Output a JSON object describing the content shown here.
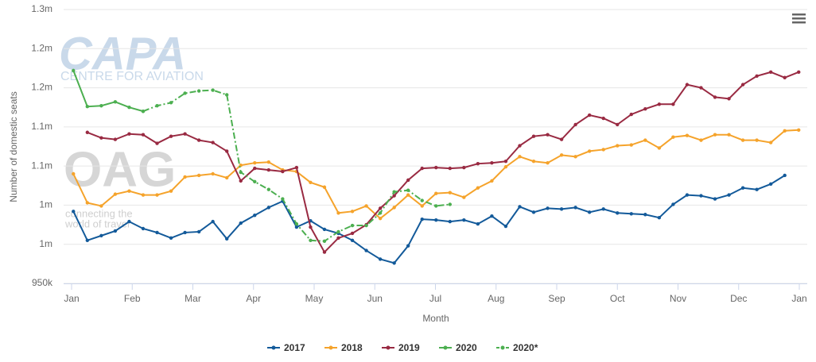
{
  "chart_data": {
    "type": "line",
    "y_label": "Number of domestic seats",
    "x_label": "Month",
    "watermarks": [
      "CAPA",
      "CENTRE FOR AVIATION",
      "OAG",
      "connecting the",
      "world of travel"
    ],
    "xlim": [
      0,
      12
    ],
    "xticks": [
      {
        "value": 0,
        "label": "Jan"
      },
      {
        "value": 1,
        "label": "Feb"
      },
      {
        "value": 2,
        "label": "Mar"
      },
      {
        "value": 3,
        "label": "Apr"
      },
      {
        "value": 4,
        "label": "May"
      },
      {
        "value": 5,
        "label": "Jun"
      },
      {
        "value": 6,
        "label": "Jul"
      },
      {
        "value": 7,
        "label": "Aug"
      },
      {
        "value": 8,
        "label": "Sep"
      },
      {
        "value": 9,
        "label": "Oct"
      },
      {
        "value": 10,
        "label": "Nov"
      },
      {
        "value": 11,
        "label": "Dec"
      },
      {
        "value": 12,
        "label": "Jan"
      }
    ],
    "ylim": [
      950000,
      1300000
    ],
    "yticks": [
      {
        "value": 950000,
        "label": "950k"
      },
      {
        "value": 1000000,
        "label": "1m"
      },
      {
        "value": 1050000,
        "label": "1m"
      },
      {
        "value": 1100000,
        "label": "1.1m"
      },
      {
        "value": 1150000,
        "label": "1.1m"
      },
      {
        "value": 1200000,
        "label": "1.2m"
      },
      {
        "value": 1250000,
        "label": "1.2m"
      },
      {
        "value": 1300000,
        "label": "1.3m"
      }
    ],
    "grid": true,
    "legend": "bottom",
    "x": [
      0.03,
      0.26,
      0.49,
      0.72,
      0.95,
      1.18,
      1.41,
      1.64,
      1.87,
      2.1,
      2.33,
      2.56,
      2.79,
      3.02,
      3.25,
      3.48,
      3.71,
      3.94,
      4.17,
      4.4,
      4.63,
      4.86,
      5.09,
      5.32,
      5.55,
      5.78,
      6.01,
      6.24,
      6.47,
      6.7,
      6.93,
      7.16,
      7.39,
      7.62,
      7.85,
      8.08,
      8.31,
      8.54,
      8.77,
      9.0,
      9.23,
      9.46,
      9.69,
      9.92,
      10.15,
      10.38,
      10.61,
      10.84,
      11.07,
      11.3,
      11.53,
      11.76,
      11.99
    ],
    "series": [
      {
        "name": "2017",
        "color": "#135a9a",
        "dashed": false,
        "values": [
          1042000,
          1005000,
          1011000,
          1017000,
          1029000,
          1020000,
          1015000,
          1008000,
          1015000,
          1016000,
          1029000,
          1007000,
          1027000,
          1037000,
          1047000,
          1055000,
          1022000,
          1030000,
          1019000,
          1014000,
          1005000,
          992000,
          981000,
          976000,
          998000,
          1032000,
          1031000,
          1029000,
          1031000,
          1026000,
          1036000,
          1023000,
          1048000,
          1041000,
          1046000,
          1045000,
          1047000,
          1041000,
          1045000,
          1040000,
          1039000,
          1038000,
          1034000,
          1051000,
          1063000,
          1062000,
          1058000,
          1063000,
          1072000,
          1070000,
          1077000,
          1088000,
          null
        ]
      },
      {
        "name": "2018",
        "color": "#f5a32b",
        "dashed": false,
        "values": [
          1090000,
          1053000,
          1049000,
          1064000,
          1068000,
          1063000,
          1063000,
          1068000,
          1086000,
          1088000,
          1090000,
          1085000,
          1101000,
          1104000,
          1105000,
          1095000,
          1093000,
          1079000,
          1073000,
          1040000,
          1042000,
          1049000,
          1033000,
          1047000,
          1063000,
          1049000,
          1065000,
          1066000,
          1060000,
          1072000,
          1081000,
          1099000,
          1112000,
          1106000,
          1104000,
          1114000,
          1112000,
          1119000,
          1121000,
          1126000,
          1127000,
          1133000,
          1123000,
          1137000,
          1139000,
          1133000,
          1140000,
          1140000,
          1133000,
          1133000,
          1130000,
          1145000,
          1146000
        ]
      },
      {
        "name": "2019",
        "color": "#992a42",
        "dashed": false,
        "values": [
          null,
          1143000,
          1136000,
          1134000,
          1141000,
          1140000,
          1129000,
          1138000,
          1141000,
          1133000,
          1130000,
          1119000,
          1081000,
          1097000,
          1095000,
          1093000,
          1098000,
          1022000,
          990000,
          1008000,
          1014000,
          1025000,
          1046000,
          1062000,
          1082000,
          1097000,
          1098000,
          1097000,
          1098000,
          1103000,
          1104000,
          1106000,
          1126000,
          1138000,
          1140000,
          1134000,
          1153000,
          1165000,
          1161000,
          1153000,
          1166000,
          1173000,
          1179000,
          1179000,
          1204000,
          1200000,
          1188000,
          1186000,
          1204000,
          1215000,
          1220000,
          1213000,
          1220000
        ]
      },
      {
        "name": "2020",
        "color": "#4caf50",
        "dashed": false,
        "values": [
          1222000,
          1176000,
          1177000,
          1182000,
          1175000,
          1170000,
          null,
          null,
          null,
          null,
          null,
          null,
          null,
          null,
          null,
          null,
          null,
          null,
          null,
          null,
          null,
          null,
          null,
          null,
          null,
          null,
          null,
          null,
          null,
          null,
          null,
          null,
          null,
          null,
          null,
          null,
          null,
          null,
          null,
          null,
          null,
          null,
          null,
          null,
          null,
          null,
          null,
          null,
          null,
          null,
          null,
          null,
          null
        ]
      },
      {
        "name": "2020*",
        "color": "#4caf50",
        "dashed": true,
        "values": [
          null,
          null,
          null,
          null,
          null,
          1170000,
          1177000,
          1181000,
          1193000,
          1196000,
          1197000,
          1191000,
          1092000,
          1080000,
          1070000,
          1058000,
          1026000,
          1005000,
          1004000,
          1016000,
          1024000,
          1024000,
          1040000,
          1067000,
          1069000,
          1056000,
          1049000,
          1051000,
          null,
          null,
          null,
          null,
          null,
          null,
          null,
          null,
          null,
          null,
          null,
          null,
          null,
          null,
          null,
          null,
          null,
          null,
          null,
          null,
          null,
          null,
          null,
          null,
          null
        ]
      }
    ]
  }
}
